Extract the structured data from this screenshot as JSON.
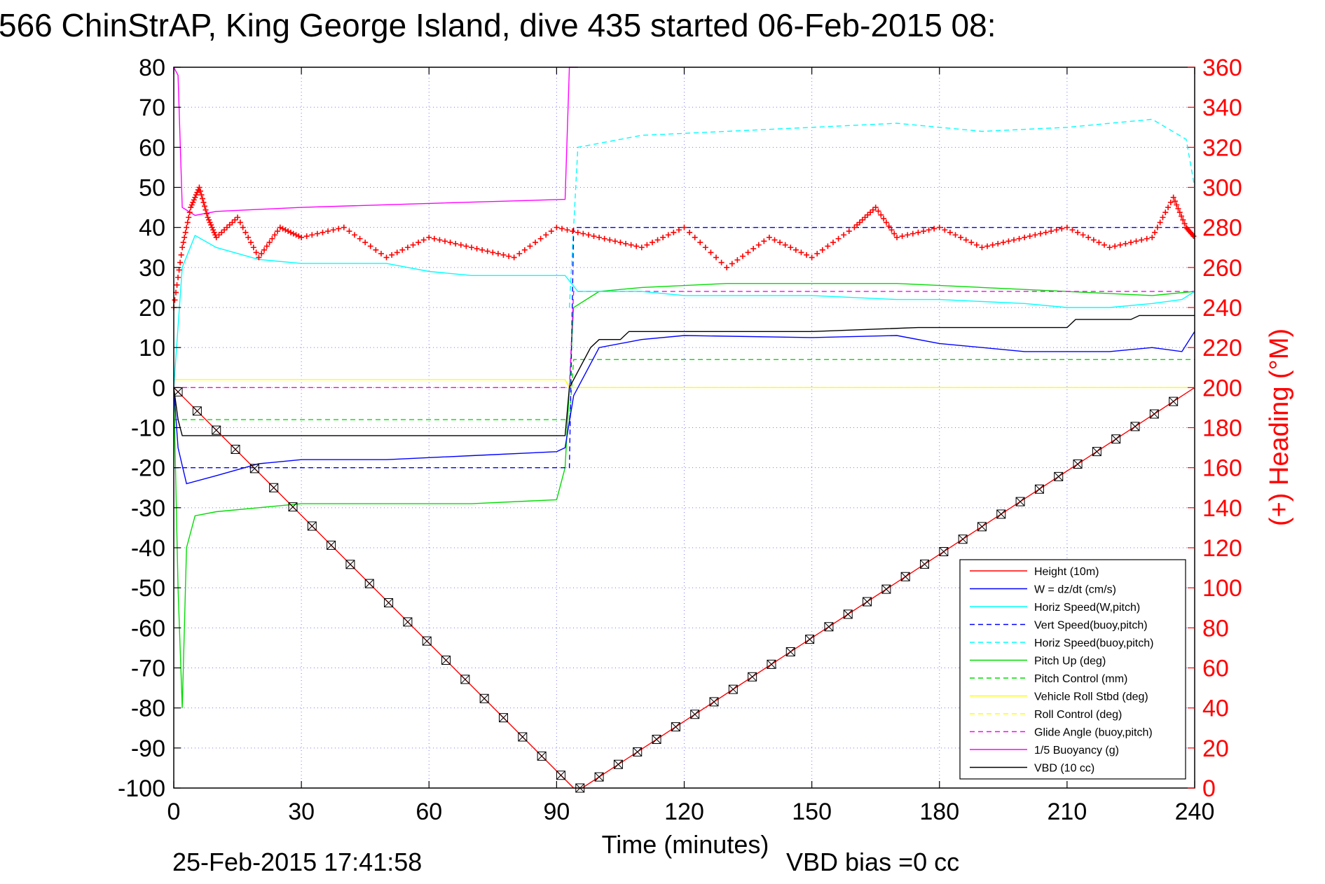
{
  "chart_data": {
    "type": "line",
    "title": "566 ChinStrAP, King George Island, dive 435 started 06-Feb-2015 08:",
    "xlabel": "Time (minutes)",
    "ylabel_right": "(+) Heading (°M)",
    "footer_date": "25-Feb-2015 17:41:58",
    "footer_bias": "VBD bias =0 cc",
    "xlim": [
      0,
      240
    ],
    "ylim": [
      -100,
      80
    ],
    "ylim_right": [
      0,
      360
    ],
    "x_ticks": [
      0,
      30,
      60,
      90,
      120,
      150,
      180,
      210,
      240
    ],
    "y_ticks": [
      80,
      70,
      60,
      50,
      40,
      30,
      20,
      10,
      0,
      -10,
      -20,
      -30,
      -40,
      -50,
      -60,
      -70,
      -80,
      -90,
      -100
    ],
    "y_ticks_right": [
      360,
      340,
      320,
      300,
      280,
      260,
      240,
      220,
      200,
      180,
      160,
      140,
      120,
      100,
      80,
      60,
      40,
      20,
      0
    ],
    "grid": true,
    "legend_position": "bottom-right",
    "colors": {
      "red": "#ff0000",
      "blue": "#0000ff",
      "cyan": "#00ffff",
      "green": "#00dd00",
      "yellow": "#ffff00",
      "magenta": "#ff00ff",
      "black": "#000000",
      "grid": "#7878ff"
    },
    "series": [
      {
        "name": "Height (10m)",
        "color": "#ff0000",
        "dash": false,
        "x": [
          0,
          94,
          96,
          240
        ],
        "y": [
          0,
          -100,
          -100,
          0
        ]
      },
      {
        "name": "W = dz/dt (cm/s)",
        "color": "#0000ff",
        "dash": false,
        "x": [
          0,
          1,
          3,
          10,
          20,
          30,
          50,
          70,
          90,
          92,
          94,
          100,
          110,
          120,
          150,
          170,
          180,
          200,
          210,
          220,
          230,
          237,
          240
        ],
        "y": [
          0,
          -15,
          -24,
          -22,
          -19,
          -18,
          -18,
          -17,
          -16,
          -15,
          -2,
          10,
          12,
          13,
          12.5,
          13,
          11,
          9,
          9,
          9,
          10,
          9,
          14
        ]
      },
      {
        "name": "Horiz Speed(W,pitch)",
        "color": "#00ffff",
        "dash": false,
        "x": [
          0,
          2,
          5,
          10,
          20,
          30,
          40,
          50,
          60,
          70,
          80,
          90,
          92,
          95,
          100,
          110,
          120,
          150,
          170,
          180,
          200,
          210,
          220,
          230,
          237,
          240
        ],
        "y": [
          0,
          30,
          38,
          35,
          32,
          31,
          31,
          31,
          29,
          28,
          28,
          28,
          28,
          24,
          24,
          24,
          23,
          23,
          22,
          22,
          21,
          20,
          20,
          21,
          22,
          24
        ]
      },
      {
        "name": "Vert Speed(buoy,pitch)",
        "color": "#0000ff",
        "dash": true,
        "x": [
          0,
          93,
          94,
          240
        ],
        "y": [
          -20,
          -20,
          40,
          40
        ]
      },
      {
        "name": "Horiz Speed(buoy,pitch)",
        "color": "#00ffff",
        "dash": true,
        "x": [
          93,
          95,
          100,
          110,
          130,
          150,
          170,
          190,
          210,
          230,
          238,
          240
        ],
        "y": [
          20,
          60,
          61,
          63,
          64,
          65,
          66,
          64,
          65,
          67,
          62,
          50
        ]
      },
      {
        "name": "Pitch Up (deg)",
        "color": "#00dd00",
        "dash": false,
        "x": [
          0,
          1,
          2,
          3,
          5,
          10,
          20,
          30,
          50,
          70,
          90,
          92,
          94,
          100,
          110,
          130,
          150,
          170,
          190,
          210,
          230,
          240
        ],
        "y": [
          0,
          -50,
          -80,
          -40,
          -32,
          -31,
          -30,
          -29,
          -29,
          -29,
          -28,
          -20,
          20,
          24,
          25,
          26,
          26,
          26,
          25,
          24,
          23,
          24
        ]
      },
      {
        "name": "Pitch Control (mm)",
        "color": "#00dd00",
        "dash": true,
        "x": [
          0,
          93,
          94,
          240
        ],
        "y": [
          -8,
          -8,
          7,
          7
        ]
      },
      {
        "name": "Vehicle Roll Stbd (deg)",
        "color": "#ffff00",
        "dash": false,
        "x": [
          0,
          92,
          93,
          240
        ],
        "y": [
          2,
          2,
          0,
          0
        ]
      },
      {
        "name": "Roll Control (deg)",
        "color": "#ffff00",
        "dash": true,
        "x": [
          0,
          240
        ],
        "y": [
          0,
          0
        ]
      },
      {
        "name": "Glide Angle (buoy,pitch)",
        "color": "#ff00ff",
        "dash": true,
        "x": [
          0,
          93,
          94,
          240
        ],
        "y": [
          0,
          0,
          24,
          24
        ]
      },
      {
        "name": "1/5 Buoyancy (g)",
        "color": "#ff00ff",
        "dash": false,
        "x": [
          0,
          1,
          2,
          5,
          10,
          30,
          60,
          92,
          93,
          95
        ],
        "y": [
          80,
          78,
          45,
          43,
          44,
          45,
          46,
          47,
          80,
          80
        ]
      },
      {
        "name": "VBD (10 cc)",
        "color": "#000000",
        "dash": false,
        "x": [
          0,
          1,
          2,
          92,
          93,
          98,
          100,
          105,
          107,
          150,
          175,
          210,
          212,
          225,
          227,
          240
        ],
        "y": [
          0,
          -8,
          -12,
          -12,
          0,
          10,
          12,
          12,
          14,
          14,
          15,
          15,
          17,
          17,
          18,
          18
        ]
      }
    ],
    "heading": {
      "axis": "right",
      "color": "#ff0000",
      "marker": "+",
      "x": [
        0,
        2,
        4,
        6,
        8,
        10,
        15,
        20,
        25,
        30,
        40,
        50,
        60,
        70,
        80,
        90,
        100,
        110,
        120,
        130,
        140,
        150,
        160,
        165,
        170,
        180,
        190,
        200,
        210,
        220,
        230,
        235,
        238,
        240
      ],
      "y": [
        240,
        270,
        290,
        300,
        285,
        275,
        285,
        265,
        280,
        275,
        280,
        265,
        275,
        270,
        265,
        280,
        275,
        270,
        280,
        260,
        275,
        265,
        280,
        290,
        275,
        280,
        270,
        275,
        280,
        270,
        275,
        295,
        280,
        275
      ]
    }
  },
  "legend": {
    "items": [
      {
        "label": "Height (10m)",
        "color": "#ff0000",
        "dash": false
      },
      {
        "label": "W = dz/dt (cm/s)",
        "color": "#0000ff",
        "dash": false
      },
      {
        "label": "Horiz Speed(W,pitch)",
        "color": "#00ffff",
        "dash": false
      },
      {
        "label": "Vert Speed(buoy,pitch)",
        "color": "#0000ff",
        "dash": true
      },
      {
        "label": "Horiz Speed(buoy,pitch)",
        "color": "#00ffff",
        "dash": true
      },
      {
        "label": "Pitch Up (deg)",
        "color": "#00dd00",
        "dash": false
      },
      {
        "label": "Pitch Control (mm)",
        "color": "#00dd00",
        "dash": true
      },
      {
        "label": "Vehicle Roll Stbd (deg)",
        "color": "#ffff00",
        "dash": false
      },
      {
        "label": "Roll Control (deg)",
        "color": "#ffff00",
        "dash": true
      },
      {
        "label": "Glide Angle (buoy,pitch)",
        "color": "#ff00ff",
        "dash": true
      },
      {
        "label": "1/5 Buoyancy (g)",
        "color": "#ff00ff",
        "dash": false
      },
      {
        "label": "VBD (10 cc)",
        "color": "#000000",
        "dash": false
      }
    ]
  }
}
